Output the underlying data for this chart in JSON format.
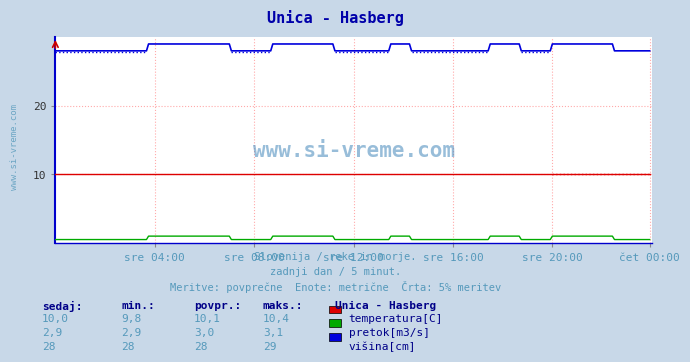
{
  "title": "Unica - Hasberg",
  "title_color": "#0000aa",
  "bg_color": "#c8d8e8",
  "plot_bg_color": "#ffffff",
  "grid_color": "#ffaaaa",
  "xlabel_ticks": [
    "sre 04:00",
    "sre 08:00",
    "sre 12:00",
    "sre 16:00",
    "sre 20:00",
    "čet 00:00"
  ],
  "ylabel_ticks": [
    10,
    20
  ],
  "ylim": [
    0,
    30
  ],
  "xlim_min": 0,
  "xlim_max": 288,
  "subtitle_lines": [
    "Slovenija / reke in morje.",
    "zadnji dan / 5 minut.",
    "Meritve: povprečne  Enote: metrične  Črta: 5% meritev"
  ],
  "subtitle_color": "#5599bb",
  "watermark": "www.si-vreme.com",
  "watermark_color": "#4488bb",
  "legend_title": "Unica - Hasberg",
  "legend_items": [
    {
      "label": "temperatura[C]",
      "color": "#dd0000"
    },
    {
      "label": "pretok[m3/s]",
      "color": "#00aa00"
    },
    {
      "label": "višina[cm]",
      "color": "#0000dd"
    }
  ],
  "table_headers": [
    "sedaj:",
    "min.:",
    "povpr.:",
    "maks.:"
  ],
  "table_data": [
    [
      "10,0",
      "9,8",
      "10,1",
      "10,4"
    ],
    [
      "2,9",
      "2,9",
      "3,0",
      "3,1"
    ],
    [
      "28",
      "28",
      "28",
      "29"
    ]
  ],
  "temp_color": "#dd0000",
  "flow_color": "#00aa00",
  "height_color": "#0000dd",
  "spine_color": "#0000cc",
  "axis_arrow_color": "#cc0000",
  "n_points": 288,
  "temp_base": 10.0,
  "flow_base": 0.5,
  "height_base": 28.0,
  "height_bump": 29.0,
  "bump_ranges": [
    [
      45,
      85
    ],
    [
      105,
      135
    ],
    [
      162,
      172
    ],
    [
      210,
      225
    ],
    [
      240,
      270
    ]
  ],
  "dotted_ranges": [
    [
      0,
      45
    ],
    [
      85,
      105
    ],
    [
      135,
      162
    ],
    [
      172,
      210
    ],
    [
      225,
      240
    ]
  ],
  "height_dotted_val": 27.8
}
